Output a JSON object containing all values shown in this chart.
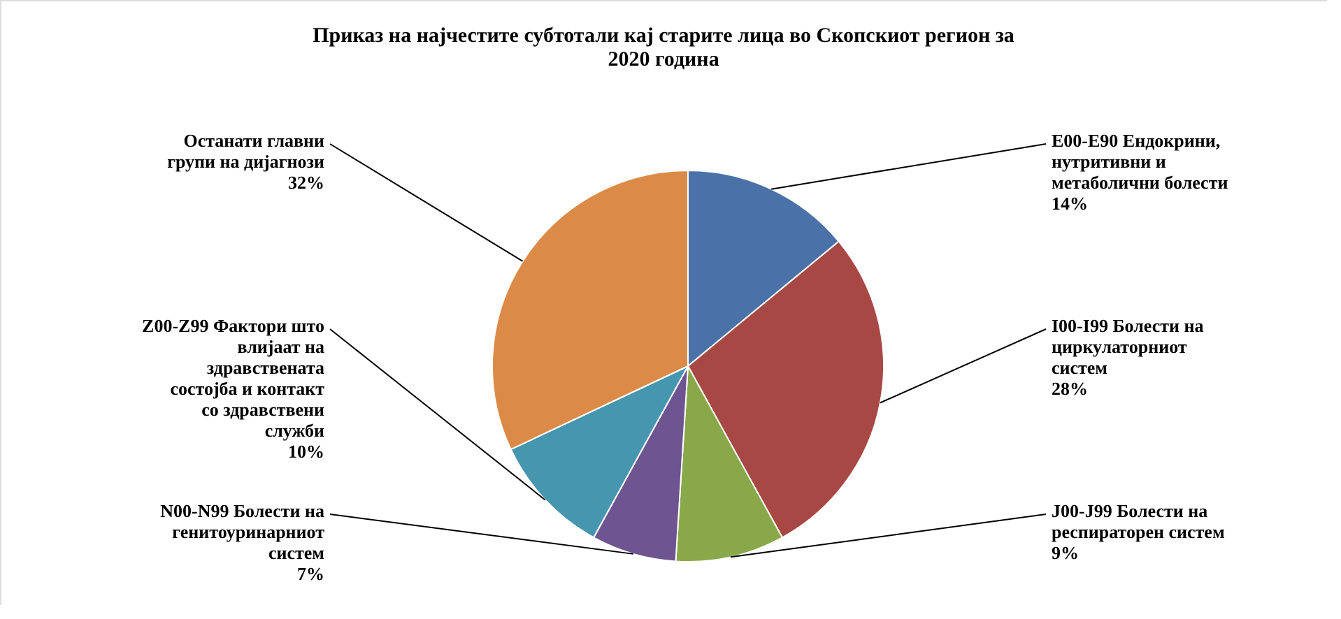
{
  "chart_data": {
    "type": "pie",
    "title": "Приказ на најчестите субтотали кај старите лица во Скопскиот регион за 2020 година",
    "categories": [
      "E00-E90 Ендокрини, нутритивни и метаболични болести",
      "I00-I99 Болести на циркулаторниот систем",
      "J00-J99 Болести на респираторен систем",
      "N00-N99 Болести на генитоуринарниот систем",
      "Z00-Z99 Фактори што влијаат на здравствената состојба и контакт со здравствени служби",
      "Останати главни групи на дијагнози"
    ],
    "values": [
      14,
      28,
      9,
      7,
      10,
      32
    ],
    "value_labels": [
      "14%",
      "28%",
      "9%",
      "7%",
      "10%",
      "32%"
    ],
    "colors": [
      "#4a72a8",
      "#a84845",
      "#89a84a",
      "#6e5490",
      "#4596ae",
      "#db8b47"
    ],
    "legend": false
  }
}
